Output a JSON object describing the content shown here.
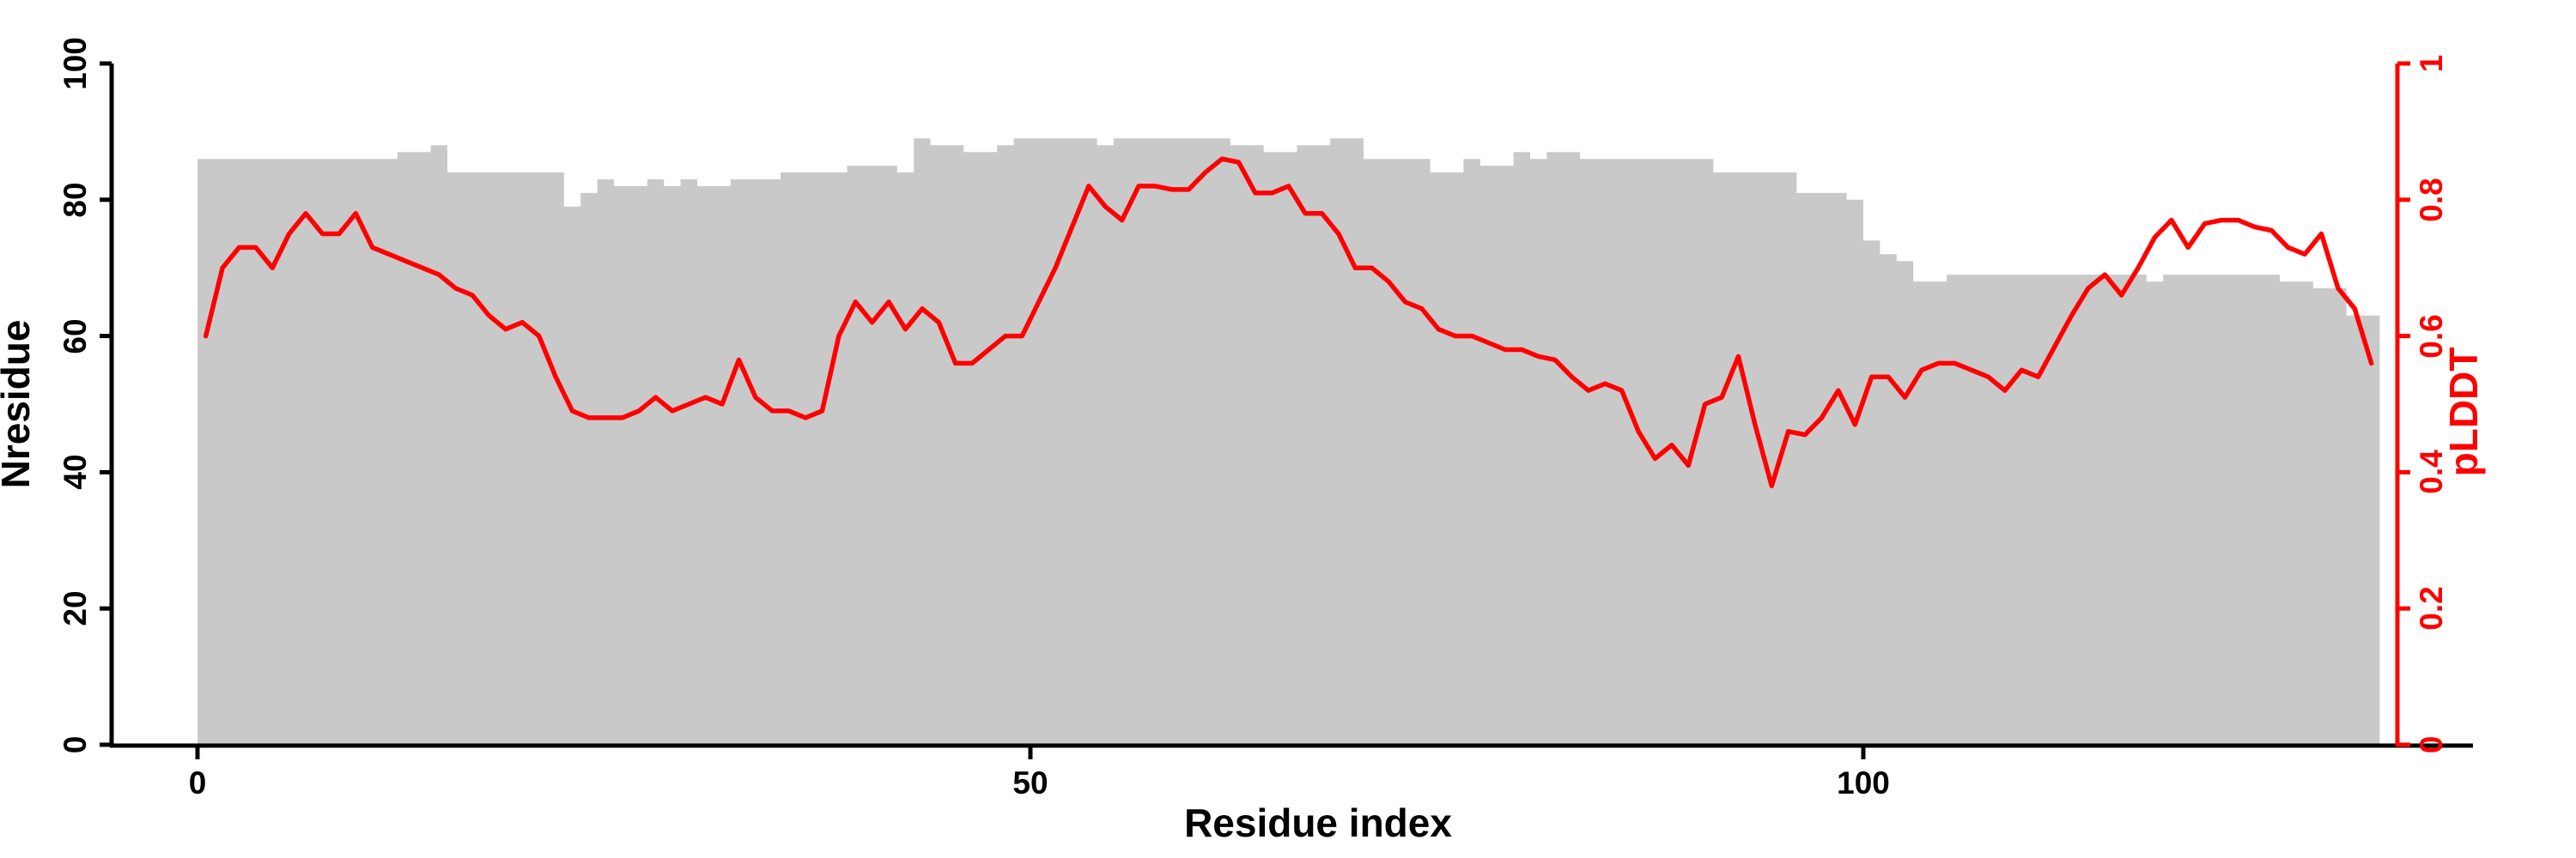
{
  "chart_data": {
    "type": "bar",
    "subtype": "dual-axis bar plus line overlay",
    "title": "",
    "x_start_residue": 0,
    "x_axis": {
      "label": "Residue index",
      "ticks": [
        0,
        50,
        100
      ],
      "tick_labels": [
        "0",
        "50",
        "100"
      ],
      "range": [
        0,
        131
      ],
      "color": "#000000"
    },
    "left_axis": {
      "label": "Nresidue",
      "ticks": [
        0,
        20,
        40,
        60,
        80,
        100
      ],
      "tick_labels": [
        "0",
        "20",
        "40",
        "60",
        "80",
        "100"
      ],
      "range": [
        0,
        100
      ],
      "color": "#000000"
    },
    "right_axis": {
      "label": "pLDDT",
      "ticks": [
        0,
        0.2,
        0.4,
        0.6,
        0.8,
        1
      ],
      "tick_labels": [
        "0",
        "0.2",
        "0.4",
        "0.6",
        "0.8",
        "1"
      ],
      "range": [
        0,
        1
      ],
      "color": "#ff0000"
    },
    "grid": false,
    "legend": "none",
    "series": [
      {
        "name": "Nresidue",
        "type": "bar",
        "axis": "left",
        "color": "#c9c9c9",
        "values": [
          86,
          86,
          86,
          86,
          86,
          86,
          86,
          86,
          86,
          86,
          86,
          86,
          87,
          87,
          88,
          84,
          84,
          84,
          84,
          84,
          84,
          84,
          79,
          81,
          83,
          82,
          82,
          83,
          82,
          83,
          82,
          82,
          83,
          83,
          83,
          84,
          84,
          84,
          84,
          85,
          85,
          85,
          84,
          89,
          88,
          88,
          87,
          87,
          88,
          89,
          89,
          89,
          89,
          89,
          88,
          89,
          89,
          89,
          89,
          89,
          89,
          89,
          88,
          88,
          87,
          87,
          88,
          88,
          89,
          89,
          86,
          86,
          86,
          86,
          84,
          84,
          86,
          85,
          85,
          87,
          86,
          87,
          87,
          86,
          86,
          86,
          86,
          86,
          86,
          86,
          86,
          84,
          84,
          84,
          84,
          84,
          81,
          81,
          81,
          80,
          74,
          72,
          71,
          68,
          68,
          69,
          69,
          69,
          69,
          69,
          69,
          69,
          69,
          69,
          69,
          69,
          69,
          68,
          69,
          69,
          69,
          69,
          69,
          69,
          69,
          68,
          68,
          67,
          67,
          63,
          63
        ]
      },
      {
        "name": "pLDDT",
        "type": "line",
        "axis": "right",
        "color": "#ff0000",
        "values": [
          0.6,
          0.7,
          0.73,
          0.73,
          0.7,
          0.75,
          0.78,
          0.75,
          0.75,
          0.78,
          0.73,
          0.72,
          0.71,
          0.7,
          0.69,
          0.67,
          0.66,
          0.63,
          0.61,
          0.62,
          0.6,
          0.54,
          0.49,
          0.48,
          0.48,
          0.48,
          0.49,
          0.51,
          0.49,
          0.5,
          0.51,
          0.5,
          0.565,
          0.51,
          0.49,
          0.49,
          0.48,
          0.49,
          0.6,
          0.65,
          0.62,
          0.65,
          0.61,
          0.64,
          0.62,
          0.56,
          0.56,
          0.58,
          0.6,
          0.6,
          0.65,
          0.7,
          0.76,
          0.82,
          0.79,
          0.77,
          0.82,
          0.82,
          0.815,
          0.815,
          0.84,
          0.86,
          0.855,
          0.81,
          0.81,
          0.82,
          0.78,
          0.78,
          0.75,
          0.7,
          0.7,
          0.68,
          0.65,
          0.64,
          0.61,
          0.6,
          0.6,
          0.59,
          0.58,
          0.58,
          0.57,
          0.565,
          0.54,
          0.52,
          0.53,
          0.52,
          0.46,
          0.42,
          0.44,
          0.41,
          0.5,
          0.51,
          0.57,
          0.47,
          0.38,
          0.46,
          0.455,
          0.48,
          0.52,
          0.47,
          0.54,
          0.54,
          0.51,
          0.55,
          0.56,
          0.56,
          0.55,
          0.54,
          0.52,
          0.55,
          0.54,
          0.585,
          0.63,
          0.67,
          0.69,
          0.66,
          0.7,
          0.745,
          0.77,
          0.73,
          0.765,
          0.77,
          0.77,
          0.76,
          0.755,
          0.73,
          0.72,
          0.75,
          0.67,
          0.64,
          0.56
        ]
      }
    ]
  },
  "colors": {
    "background": "#ffffff",
    "bars": "#c9c9c9",
    "line": "#ff0000",
    "axes": "#000000"
  }
}
